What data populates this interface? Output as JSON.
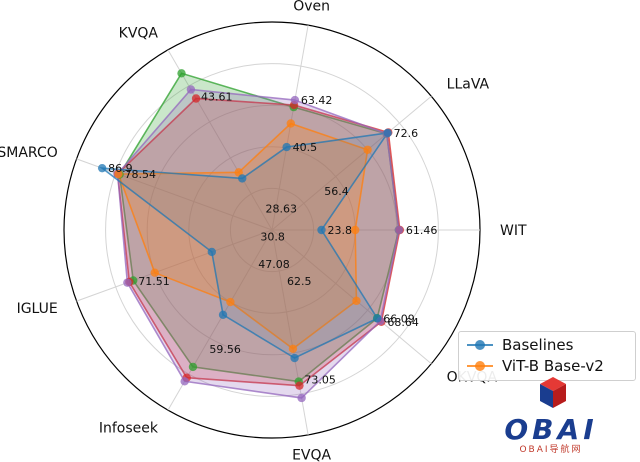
{
  "chart_data": {
    "type": "radar",
    "axes": [
      "Oven",
      "LLaVA",
      "WIT",
      "OKVQA",
      "EVQA",
      "Infoseek",
      "IGLUE",
      "MSMARCO",
      "KVQA"
    ],
    "rlim": [
      0,
      100
    ],
    "grid": true,
    "legend_position": "bottom-right",
    "series": [
      {
        "name": "Baselines",
        "color": "#1f77b4",
        "values": [
          40.5,
          72.6,
          23.8,
          66.09,
          62.5,
          47.08,
          30.8,
          86.9,
          28.63
        ]
      },
      {
        "name": "ViT-B Base-v2",
        "color": "#ff7f0e",
        "values": [
          52,
          60,
          40,
          53,
          58,
          40,
          60,
          78.54,
          32
        ]
      },
      {
        "series_color_only": true,
        "color": "#2ca02c",
        "values": [
          60,
          72,
          61,
          66,
          74,
          76,
          71,
          78,
          87
        ]
      },
      {
        "series_color_only": true,
        "color": "#d62728",
        "values": [
          61,
          73,
          61.46,
          68.64,
          76,
          82,
          73,
          79,
          73
        ]
      },
      {
        "series_color_only": true,
        "color": "#9467bd",
        "values": [
          63.42,
          72,
          61,
          68,
          82,
          84,
          74,
          79,
          78
        ]
      }
    ],
    "value_labels": [
      {
        "text": "63.42",
        "axis": 0,
        "r": 63.42
      },
      {
        "text": "40.5",
        "axis": 0,
        "r": 40.5
      },
      {
        "text": "72.6",
        "axis": 1,
        "r": 72.6
      },
      {
        "text": "56.4",
        "axis": 1,
        "r": 29
      },
      {
        "text": "61.46",
        "axis": 2,
        "r": 61.46
      },
      {
        "text": "23.8",
        "axis": 2,
        "r": 23.8
      },
      {
        "text": "68.64",
        "axis": 3,
        "r": 68.64
      },
      {
        "text": "66.09",
        "axis": 3,
        "r": 66.09
      },
      {
        "text": "73.05",
        "axis": 4,
        "r": 73.05
      },
      {
        "text": "62.5",
        "axis": 4,
        "r": 25
      },
      {
        "text": "59.56",
        "axis": 5,
        "r": 66
      },
      {
        "text": "47.08",
        "axis": 5,
        "r": 19
      },
      {
        "text": "30.8",
        "axis": 6,
        "r": 9
      },
      {
        "text": "71.51",
        "axis": 6,
        "r": 71.51
      },
      {
        "text": "86.9",
        "axis": 7,
        "r": 86.9
      },
      {
        "text": "78.54",
        "axis": 7,
        "r": 78.54
      },
      {
        "text": "28.63",
        "axis": 8,
        "r": 12
      },
      {
        "text": "43.61",
        "axis": 8,
        "r": 74
      }
    ]
  },
  "watermark": {
    "logo_text": "OBAI",
    "sub_text": "OBAI导航网",
    "colors": {
      "cube_red": "#d32f2f",
      "cube_blue": "#1a3d8f"
    }
  }
}
